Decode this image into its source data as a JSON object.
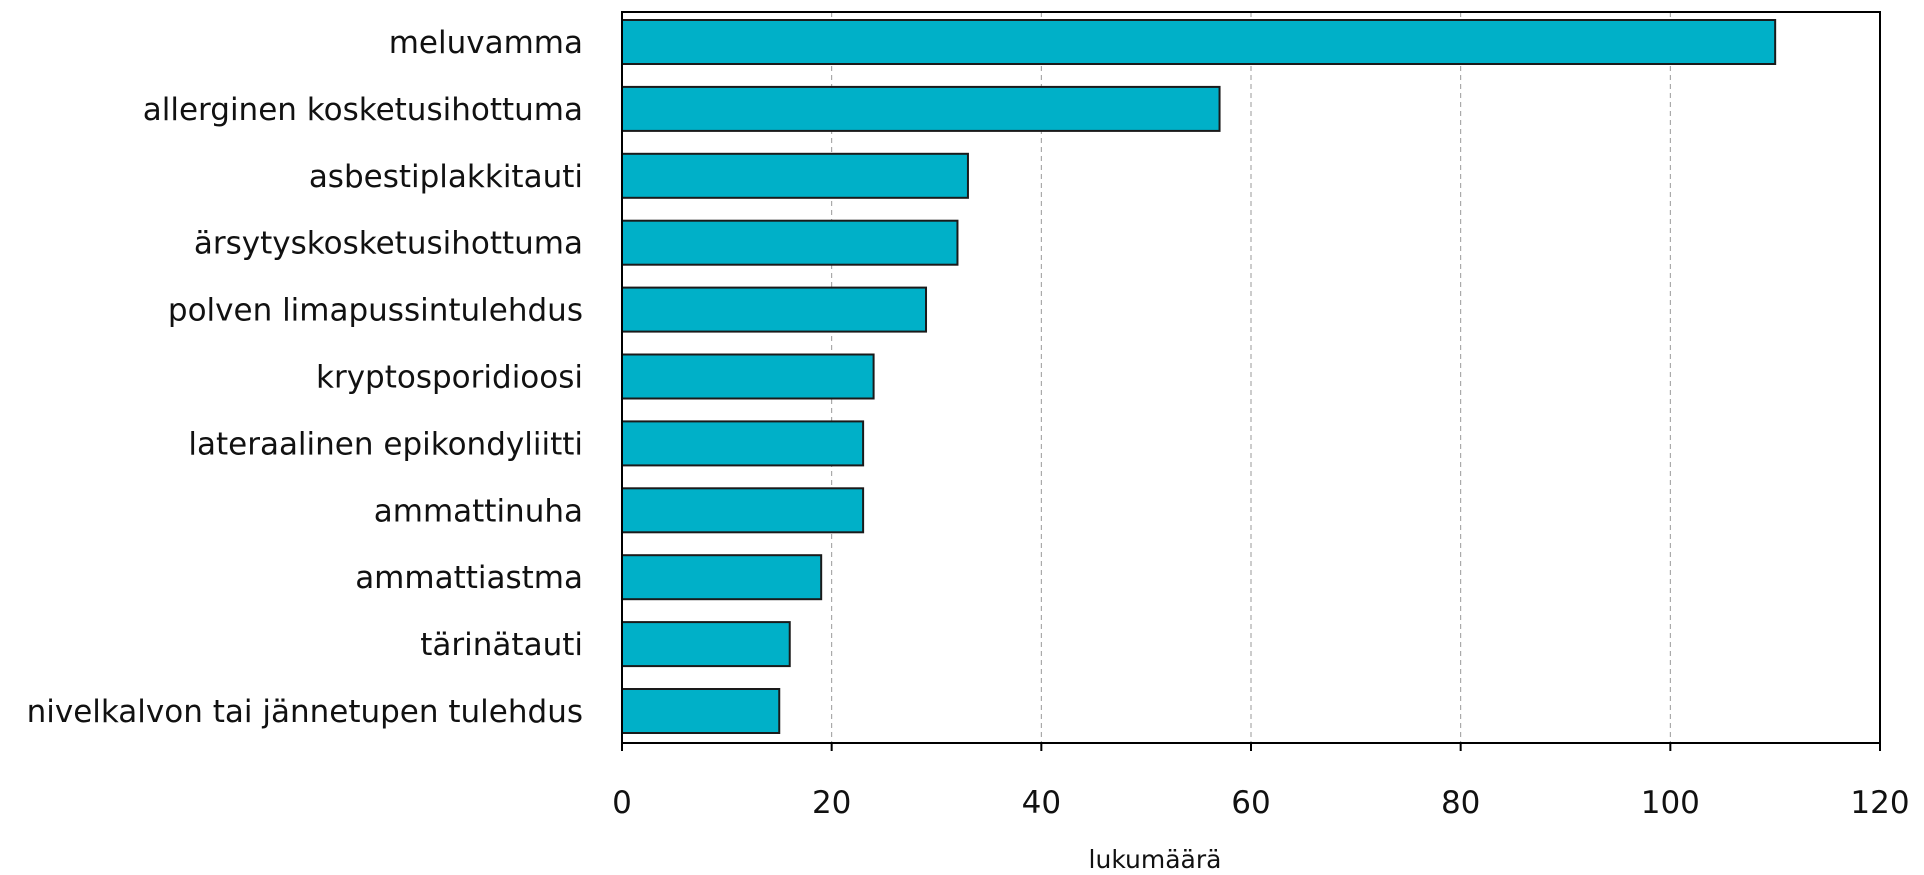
{
  "chart_data": {
    "type": "bar",
    "orientation": "horizontal",
    "categories": [
      "meluvamma",
      "allerginen kosketusihottuma",
      "asbestiplakkitauti",
      "ärsytyskosketusihottuma",
      "polven limapussintulehdus",
      "kryptosporidioosi",
      "lateraalinen epikondyliitti",
      "ammattinuha",
      "ammattiastma",
      "tärinätauti",
      "nivelkalvon tai jännetupen tulehdus"
    ],
    "values": [
      110,
      57,
      33,
      32,
      29,
      24,
      23,
      23,
      19,
      16,
      15
    ],
    "xlabel": "lukumäärä",
    "ylabel": "",
    "xlim": [
      0,
      120
    ],
    "xticks": [
      0,
      20,
      40,
      60,
      80,
      100,
      120
    ],
    "grid": "vertical-dashed",
    "legend": "none",
    "colors": {
      "bar_fill": "#00B0C8",
      "bar_stroke": "#1A1A1A",
      "grid": "#999999",
      "axis": "#000000"
    }
  }
}
